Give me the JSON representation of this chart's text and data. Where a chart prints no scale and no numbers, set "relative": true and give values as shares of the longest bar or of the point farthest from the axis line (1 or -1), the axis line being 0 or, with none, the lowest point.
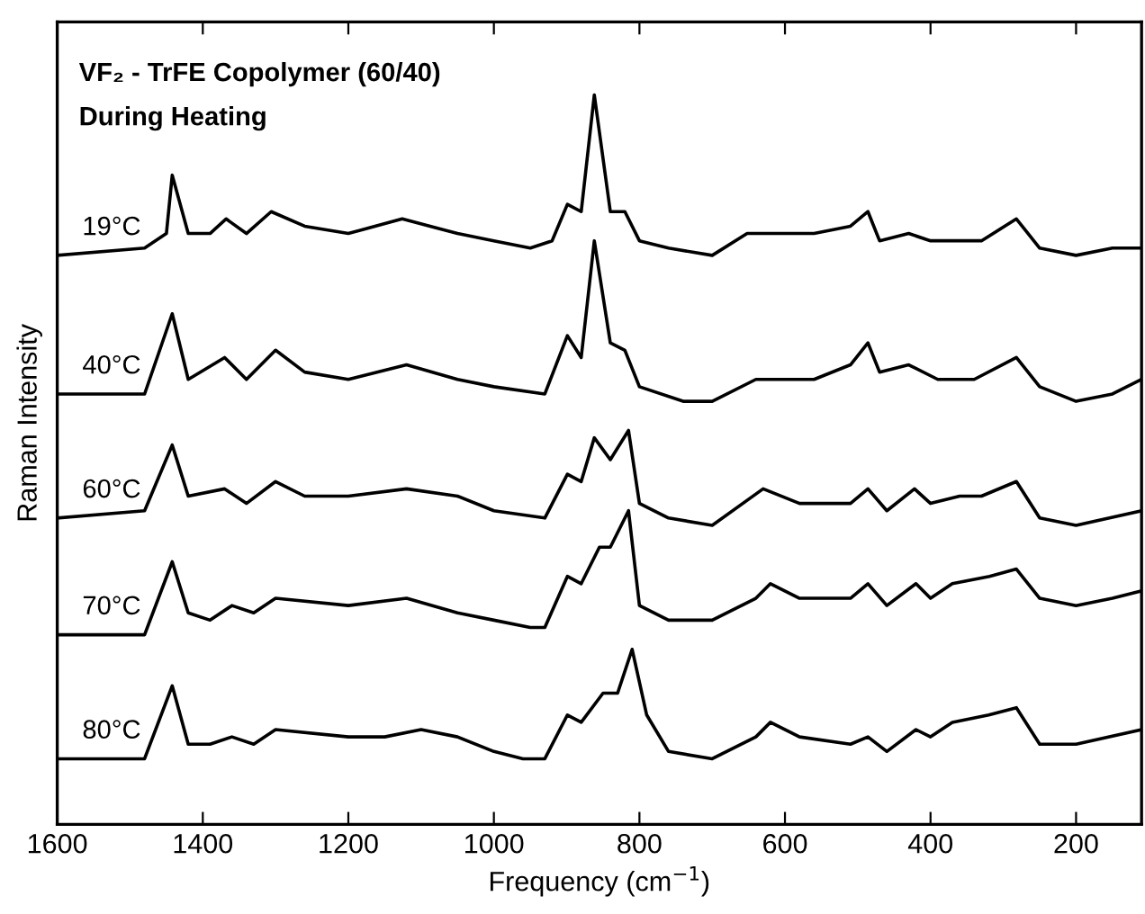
{
  "chart_data": {
    "type": "line",
    "title": "VF₂ - TrFE Copolymer (60/40)",
    "subtitle": "During Heating",
    "xlabel": "Frequency (cm$^{−1}$)",
    "ylabel": "Raman Intensity",
    "relative": true,
    "xlim": [
      1600,
      110
    ],
    "xticks": [
      1600,
      1400,
      1200,
      1000,
      800,
      600,
      400,
      200
    ],
    "grid": false,
    "legend": false,
    "marker": "none",
    "line_style": "solid",
    "series": [
      {
        "name": "19°C",
        "color": "#000000",
        "x": [
          1600,
          1480,
          1450,
          1442,
          1420,
          1390,
          1368,
          1340,
          1306,
          1260,
          1200,
          1126,
          1050,
          1000,
          950,
          920,
          899,
          880,
          862,
          840,
          820,
          800,
          760,
          700,
          652,
          560,
          510,
          486,
          470,
          430,
          400,
          360,
          330,
          282,
          250,
          200,
          150,
          110
        ],
        "values": [
          0.78,
          0.79,
          0.81,
          0.89,
          0.81,
          0.81,
          0.83,
          0.81,
          0.84,
          0.82,
          0.81,
          0.83,
          0.81,
          0.8,
          0.79,
          0.8,
          0.85,
          0.84,
          1.0,
          0.84,
          0.84,
          0.8,
          0.79,
          0.78,
          0.81,
          0.81,
          0.82,
          0.84,
          0.8,
          0.81,
          0.8,
          0.8,
          0.8,
          0.83,
          0.79,
          0.78,
          0.79,
          0.79
        ]
      },
      {
        "name": "40°C",
        "color": "#000000",
        "x": [
          1600,
          1480,
          1442,
          1420,
          1370,
          1340,
          1300,
          1260,
          1200,
          1120,
          1050,
          1000,
          930,
          899,
          880,
          862,
          840,
          820,
          800,
          740,
          700,
          640,
          560,
          510,
          486,
          470,
          430,
          390,
          340,
          282,
          250,
          200,
          150,
          110
        ],
        "values": [
          0.59,
          0.59,
          0.7,
          0.61,
          0.64,
          0.61,
          0.65,
          0.62,
          0.61,
          0.63,
          0.61,
          0.6,
          0.59,
          0.67,
          0.64,
          0.8,
          0.66,
          0.65,
          0.6,
          0.58,
          0.58,
          0.61,
          0.61,
          0.63,
          0.66,
          0.62,
          0.63,
          0.61,
          0.61,
          0.64,
          0.6,
          0.58,
          0.59,
          0.61
        ]
      },
      {
        "name": "60°C",
        "color": "#000000",
        "x": [
          1600,
          1480,
          1442,
          1420,
          1370,
          1340,
          1300,
          1260,
          1200,
          1120,
          1050,
          1000,
          930,
          899,
          880,
          862,
          840,
          815,
          800,
          760,
          700,
          630,
          580,
          510,
          486,
          460,
          422,
          400,
          360,
          330,
          282,
          250,
          200,
          110
        ],
        "values": [
          0.42,
          0.43,
          0.52,
          0.45,
          0.46,
          0.44,
          0.47,
          0.45,
          0.45,
          0.46,
          0.45,
          0.43,
          0.42,
          0.48,
          0.47,
          0.53,
          0.5,
          0.54,
          0.44,
          0.42,
          0.41,
          0.46,
          0.44,
          0.44,
          0.46,
          0.43,
          0.46,
          0.44,
          0.45,
          0.45,
          0.47,
          0.42,
          0.41,
          0.43
        ]
      },
      {
        "name": "70°C",
        "color": "#000000",
        "x": [
          1600,
          1480,
          1442,
          1420,
          1390,
          1360,
          1330,
          1300,
          1200,
          1120,
          1050,
          1000,
          950,
          930,
          899,
          880,
          855,
          840,
          815,
          800,
          760,
          700,
          640,
          620,
          580,
          510,
          486,
          460,
          420,
          400,
          370,
          319,
          282,
          250,
          200,
          150,
          110
        ],
        "values": [
          0.26,
          0.26,
          0.36,
          0.29,
          0.28,
          0.3,
          0.29,
          0.31,
          0.3,
          0.31,
          0.29,
          0.28,
          0.27,
          0.27,
          0.34,
          0.33,
          0.38,
          0.38,
          0.43,
          0.3,
          0.28,
          0.28,
          0.31,
          0.33,
          0.31,
          0.31,
          0.33,
          0.3,
          0.33,
          0.31,
          0.33,
          0.34,
          0.35,
          0.31,
          0.3,
          0.31,
          0.32
        ]
      },
      {
        "name": "80°C",
        "color": "#000000",
        "x": [
          1600,
          1480,
          1442,
          1420,
          1390,
          1360,
          1330,
          1300,
          1200,
          1150,
          1100,
          1050,
          1000,
          960,
          930,
          899,
          880,
          850,
          830,
          810,
          790,
          760,
          700,
          640,
          620,
          580,
          510,
          486,
          460,
          420,
          400,
          370,
          320,
          282,
          250,
          200,
          110
        ],
        "values": [
          0.09,
          0.09,
          0.19,
          0.11,
          0.11,
          0.12,
          0.11,
          0.13,
          0.12,
          0.12,
          0.13,
          0.12,
          0.1,
          0.09,
          0.09,
          0.15,
          0.14,
          0.18,
          0.18,
          0.24,
          0.15,
          0.1,
          0.09,
          0.12,
          0.14,
          0.12,
          0.11,
          0.12,
          0.1,
          0.13,
          0.12,
          0.14,
          0.15,
          0.16,
          0.11,
          0.11,
          0.13
        ]
      }
    ]
  }
}
